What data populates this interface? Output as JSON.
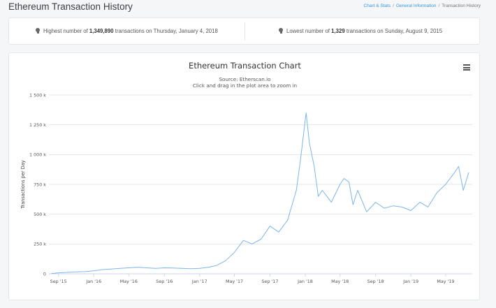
{
  "header": {
    "title": "Ethereum Transaction History",
    "breadcrumb": [
      "Chart & Stats",
      "General Information",
      "Transaction History"
    ]
  },
  "stats": {
    "highest": {
      "prefix": "Highest number of ",
      "value": "1,349,890",
      "suffix": " transactions on Thursday, January 4, 2018"
    },
    "lowest": {
      "prefix": "Lowest number of ",
      "value": "1,329",
      "suffix": " transactions on Sunday, August 9, 2015"
    }
  },
  "chart_data": {
    "type": "line",
    "title": "Ethereum Transaction Chart",
    "subtitle": "Source: Etherscan.io",
    "subtitle2": "Click and drag in the plot area to zoom in",
    "xlabel": "",
    "ylabel": "Transactions per Day",
    "ylim": [
      0,
      1500000
    ],
    "yticks": [
      0,
      250000,
      500000,
      750000,
      1000000,
      1250000,
      1500000
    ],
    "ytick_labels": [
      "0",
      "250 k",
      "500 k",
      "750 k",
      "1 000 k",
      "1 250 k",
      "1 500 k"
    ],
    "xticks": [
      "2015-09-01",
      "2016-01-01",
      "2016-05-01",
      "2016-09-01",
      "2017-01-01",
      "2017-05-01",
      "2017-09-01",
      "2018-01-01",
      "2018-05-01",
      "2018-09-01",
      "2019-01-01",
      "2019-05-01"
    ],
    "xtick_labels": [
      "Sep '15",
      "Jan '16",
      "May '16",
      "Sep '16",
      "Jan '17",
      "May '17",
      "Sep '17",
      "Jan '18",
      "May '18",
      "Sep '18",
      "Jan '19",
      "May '19"
    ],
    "xlim": [
      "2015-07-30",
      "2019-08-01"
    ],
    "grid": true,
    "line_color": "#7cb5ec",
    "series": [
      {
        "x": [
          "2015-08-07",
          "2015-09-01",
          "2015-10-01",
          "2015-11-01",
          "2015-12-01",
          "2016-01-01",
          "2016-02-01",
          "2016-03-01",
          "2016-04-01",
          "2016-05-01",
          "2016-06-01",
          "2016-07-01",
          "2016-08-01",
          "2016-09-01",
          "2016-10-01",
          "2016-11-01",
          "2016-12-01",
          "2017-01-01",
          "2017-02-01",
          "2017-03-01",
          "2017-04-01",
          "2017-05-01",
          "2017-06-01",
          "2017-07-01",
          "2017-08-01",
          "2017-09-01",
          "2017-10-01",
          "2017-11-01",
          "2017-12-01",
          "2017-12-15",
          "2018-01-04",
          "2018-01-15",
          "2018-02-01",
          "2018-02-15",
          "2018-03-01",
          "2018-04-01",
          "2018-05-01",
          "2018-05-15",
          "2018-06-01",
          "2018-06-15",
          "2018-07-01",
          "2018-08-01",
          "2018-09-01",
          "2018-10-01",
          "2018-11-01",
          "2018-12-01",
          "2019-01-01",
          "2019-02-01",
          "2019-03-01",
          "2019-04-01",
          "2019-05-01",
          "2019-06-01",
          "2019-06-15",
          "2019-07-01",
          "2019-07-20"
        ],
        "values": [
          1329,
          8000,
          12000,
          15000,
          18000,
          25000,
          35000,
          40000,
          45000,
          50000,
          55000,
          50000,
          45000,
          50000,
          48000,
          45000,
          42000,
          45000,
          55000,
          70000,
          110000,
          180000,
          280000,
          250000,
          290000,
          400000,
          350000,
          450000,
          700000,
          950000,
          1349890,
          1100000,
          900000,
          650000,
          700000,
          600000,
          750000,
          800000,
          770000,
          580000,
          700000,
          520000,
          600000,
          550000,
          570000,
          560000,
          530000,
          600000,
          560000,
          680000,
          750000,
          850000,
          900000,
          700000,
          850000
        ]
      }
    ]
  }
}
